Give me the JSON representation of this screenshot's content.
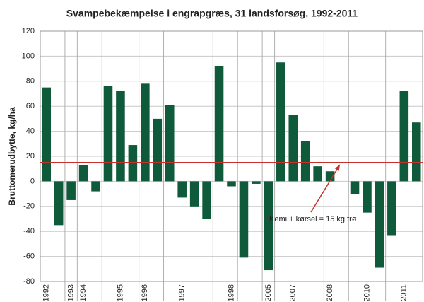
{
  "chart_data": {
    "type": "bar",
    "title": "Svampebekæmpelse i engrapgræs, 31 landsforsøg, 1992-2011",
    "y_label": "Bruttomerudbytte, kg/ha",
    "categories": [
      "1992",
      null,
      "1993",
      "1994",
      null,
      null,
      "1995",
      null,
      "1996",
      null,
      null,
      "1997",
      null,
      null,
      null,
      "1998",
      null,
      null,
      "2005",
      null,
      "2007",
      null,
      null,
      "2008",
      null,
      null,
      "2010",
      null,
      null,
      "2011",
      null
    ],
    "values": [
      75,
      -35,
      -15,
      13,
      -8,
      76,
      72,
      29,
      78,
      50,
      61,
      -13,
      -20,
      -30,
      92,
      -4,
      -61,
      -2,
      -71,
      95,
      53,
      32,
      12,
      8,
      0,
      -10,
      -25,
      -69,
      -43,
      72,
      47
    ],
    "color": "#0e5a3a",
    "ylim": [
      -80,
      120
    ],
    "yticks": [
      -80,
      -60,
      -40,
      -20,
      0,
      20,
      40,
      60,
      80,
      100,
      120
    ],
    "grid": true,
    "reference_line": {
      "value": 15,
      "label": "Kemi + kørsel = 15 kg frø",
      "color": "#c8312b"
    }
  }
}
